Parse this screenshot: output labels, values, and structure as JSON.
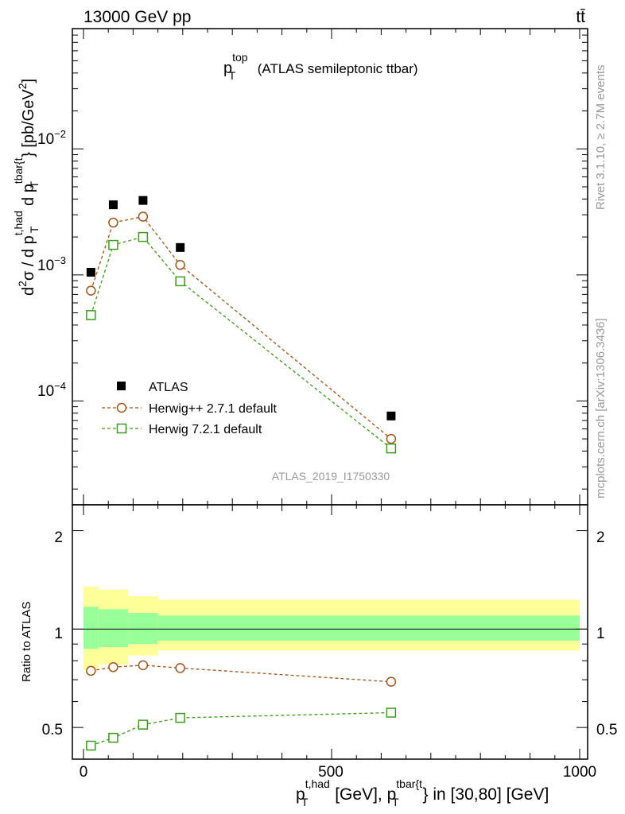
{
  "header": {
    "left": "13000 GeV pp",
    "right": "tt̄"
  },
  "side": {
    "rivet": "Rivet 3.1.10, ≥ 2.7M events",
    "mcplots": "mcplots.cern.ch [arXiv:1306.3436]"
  },
  "colors": {
    "atlas": "#000000",
    "herwigpp": "#a0541a",
    "herwig7": "#3c9b1a",
    "band_outer": "#ffff99",
    "band_inner": "#99ff99",
    "analysis_label": "#999999"
  },
  "chart_data": [
    {
      "type": "scatter",
      "title_main": "p",
      "title_sup": "top",
      "title_sub": "T",
      "title_rest": "(ATLAS semileptonic ttbar)",
      "analysis_label": "ATLAS_2019_I1750330",
      "ylabel": "d²σ / d pT^t,had d pT^tbar{t} [pb/GeV²]",
      "ylabel_parts": {
        "d2sigma": "d",
        "two": "2",
        "sigma": "σ  /  d p",
        "sup1": "t,had",
        "sub1": "T",
        "mid": " d p",
        "sup2": "tbar{t",
        "sub2": "T",
        "end": "} [pb/GeV",
        "two2": "2",
        "close": "]"
      },
      "yscale": "log",
      "ylim": [
        1.5e-05,
        0.09
      ],
      "ytick_labels": [
        {
          "base": "10",
          "exp": "−2"
        },
        {
          "base": "10",
          "exp": "−3"
        },
        {
          "base": "10",
          "exp": "−4"
        }
      ],
      "x": [
        15,
        60,
        120,
        195,
        620
      ],
      "series": [
        {
          "name": "ATLAS",
          "values": [
            0.00105,
            0.0036,
            0.0039,
            0.00165,
            7.6e-05
          ],
          "marker": "filled-square"
        },
        {
          "name": "Herwig++ 2.7.1 default",
          "values": [
            0.00075,
            0.0026,
            0.0029,
            0.0012,
            5e-05
          ],
          "marker": "open-circle",
          "line": "dashed"
        },
        {
          "name": "Herwig 7.2.1 default",
          "values": [
            0.00048,
            0.00173,
            0.002,
            0.00089,
            4.2e-05
          ],
          "marker": "open-square",
          "line": "dashed"
        }
      ],
      "legend": "lower-left"
    },
    {
      "type": "line",
      "ylabel": "Ratio to ATLAS",
      "yscale": "log",
      "ylim": [
        0.4,
        2.4
      ],
      "ytick_labels": [
        "2",
        "1",
        "0.5"
      ],
      "yticks": [
        2,
        1,
        0.5
      ],
      "xlim": [
        -30,
        1000
      ],
      "xtick_labels": [
        "0",
        "500",
        "1000"
      ],
      "xticks": [
        0,
        500,
        1000
      ],
      "xlabel_parts": {
        "p1": "p",
        "sup1": "t,had",
        "sub1": "T",
        "mid": " [GeV], p",
        "sup2": "tbar{t",
        "sub2": "T",
        "end": "} in [30,80] [GeV]"
      },
      "bins": [
        {
          "lo": 0,
          "hi": 30,
          "band_outer": [
            0.75,
            1.35
          ],
          "band_inner": [
            0.87,
            1.17
          ]
        },
        {
          "lo": 30,
          "hi": 90,
          "band_outer": [
            0.78,
            1.32
          ],
          "band_inner": [
            0.88,
            1.15
          ]
        },
        {
          "lo": 90,
          "hi": 150,
          "band_outer": [
            0.83,
            1.26
          ],
          "band_inner": [
            0.9,
            1.12
          ]
        },
        {
          "lo": 150,
          "hi": 1000,
          "band_outer": [
            0.86,
            1.23
          ],
          "band_inner": [
            0.92,
            1.1
          ]
        }
      ],
      "x": [
        15,
        60,
        120,
        195,
        620
      ],
      "series": [
        {
          "name": "Herwig++ 2.7.1 default",
          "values": [
            0.745,
            0.765,
            0.775,
            0.76,
            0.69
          ],
          "marker": "open-circle",
          "line": "dashed"
        },
        {
          "name": "Herwig 7.2.1 default",
          "values": [
            0.44,
            0.465,
            0.51,
            0.535,
            0.555
          ],
          "marker": "open-square",
          "line": "dashed"
        }
      ]
    }
  ]
}
